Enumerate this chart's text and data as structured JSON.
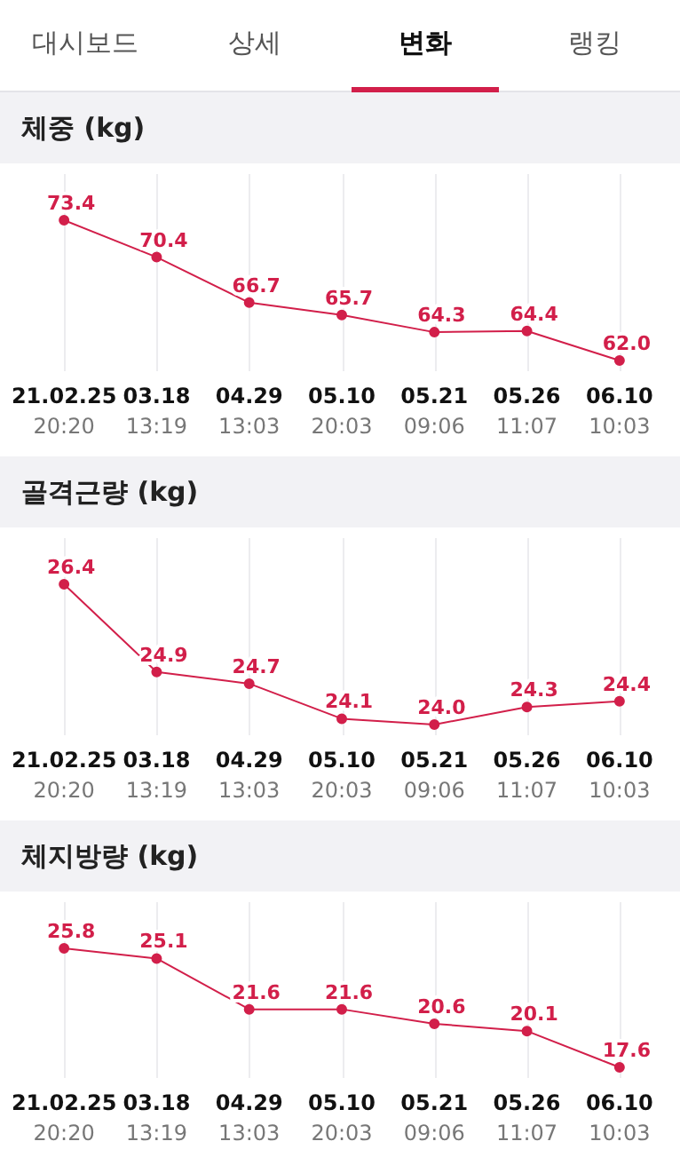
{
  "chart_data": [
    {
      "type": "line",
      "title": "체중 (kg)",
      "annotations": [
        "대시보드",
        "상세",
        "변화",
        "랭킹"
      ],
      "categories": [
        "21.02.25\n20:20",
        "03.18\n13:19",
        "04.29\n13:03",
        "05.10\n20:03",
        "05.21\n09:06",
        "05.26\n11:07",
        "06.10\n10:03"
      ],
      "series": [
        {
          "color": "#d21f4a",
          "values": [
            73.4,
            70.4,
            66.7,
            65.7,
            64.3,
            64.4,
            62.0
          ],
          "value_labels": [
            "73.4",
            "70.4",
            "66.7",
            "65.7",
            "64.3",
            "64.4",
            "62.0"
          ]
        }
      ],
      "grid": "x",
      "marker": "circle",
      "line_style": "solid"
    },
    {
      "type": "line",
      "title": "골격근량 (kg)",
      "categories": [
        "21.02.25\n20:20",
        "03.18\n13:19",
        "04.29\n13:03",
        "05.10\n20:03",
        "05.21\n09:06",
        "05.26\n11:07",
        "06.10\n10:03"
      ],
      "series": [
        {
          "color": "#d21f4a",
          "values": [
            26.4,
            24.9,
            24.7,
            24.1,
            24.0,
            24.3,
            24.4
          ],
          "value_labels": [
            "26.4",
            "24.9",
            "24.7",
            "24.1",
            "24.0",
            "24.3",
            "24.4"
          ]
        }
      ],
      "grid": "x",
      "marker": "circle",
      "line_style": "solid"
    },
    {
      "type": "line",
      "title": "체지방량 (kg)",
      "categories": [
        "21.02.25\n20:20",
        "03.18\n13:19",
        "04.29\n13:03",
        "05.10\n20:03",
        "05.21\n09:06",
        "05.26\n11:07",
        "06.10\n10:03"
      ],
      "series": [
        {
          "color": "#d21f4a",
          "values": [
            25.8,
            25.1,
            21.6,
            21.6,
            20.6,
            20.1,
            17.6
          ],
          "value_labels": [
            "25.8",
            "25.1",
            "21.6",
            "21.6",
            "20.6",
            "20.1",
            "17.6"
          ]
        }
      ],
      "grid": "x",
      "marker": "circle",
      "line_style": "solid"
    }
  ]
}
